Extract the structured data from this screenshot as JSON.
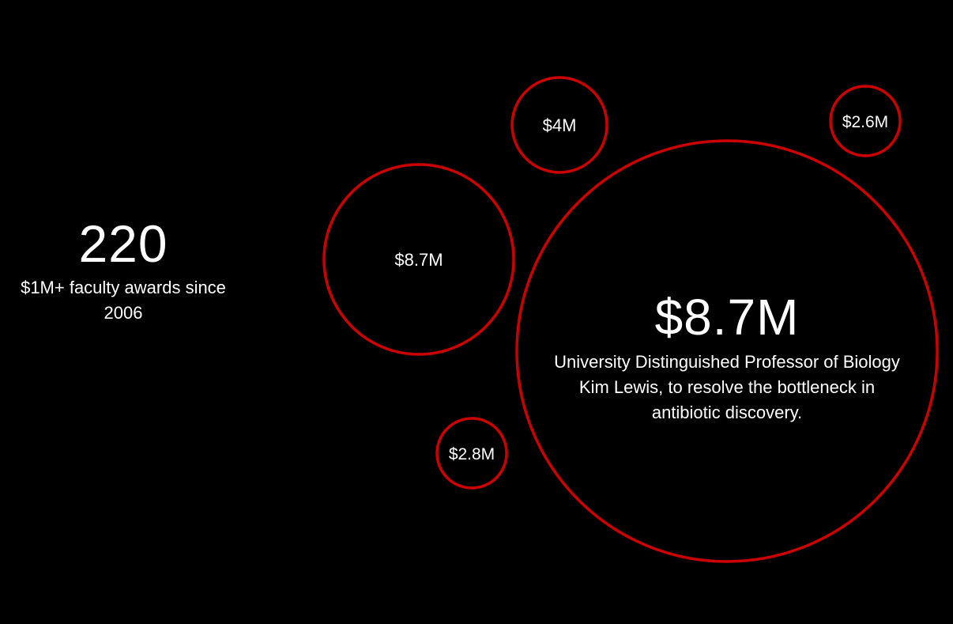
{
  "stat": {
    "number": "220",
    "caption": "$1M+ faculty awards since 2006"
  },
  "feature": {
    "value": "$8.7M",
    "description": "University Distinguished Professor of Biology Kim Lewis, to resolve the bottleneck in antibiotic discovery."
  },
  "colors": {
    "background": "#000000",
    "ring": "#cc0000",
    "text": "#ffffff"
  },
  "chart_data": {
    "type": "bubble",
    "title": "",
    "series": [
      {
        "label": "$8.7M",
        "value": 8.7,
        "featured": true
      },
      {
        "label": "$8.7M",
        "value": 8.7,
        "featured": false
      },
      {
        "label": "$4M",
        "value": 4.0,
        "featured": false
      },
      {
        "label": "$2.8M",
        "value": 2.8,
        "featured": false
      },
      {
        "label": "$2.6M",
        "value": 2.6,
        "featured": false
      }
    ]
  }
}
